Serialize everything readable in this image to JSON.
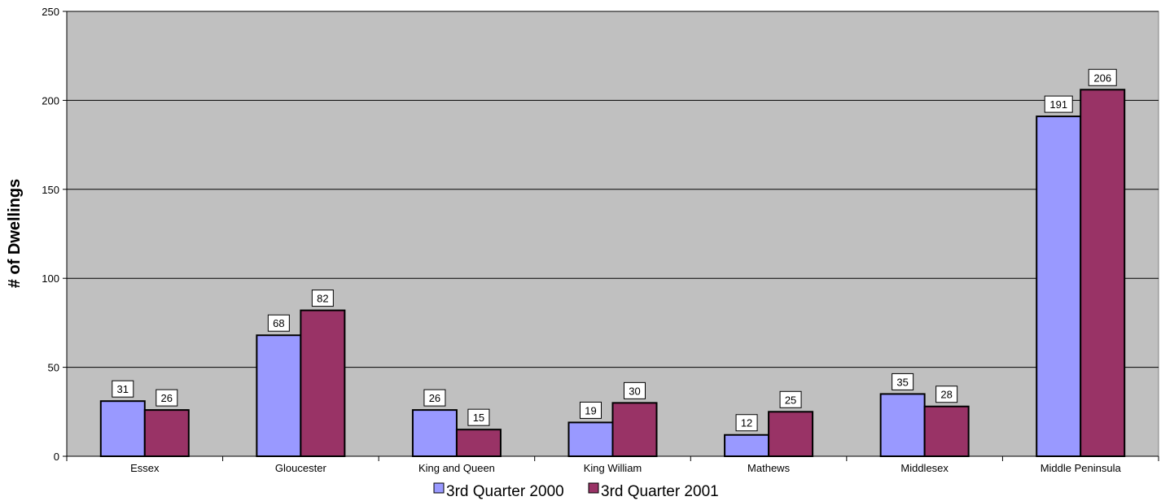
{
  "chart_data": {
    "type": "bar",
    "title": "",
    "xlabel": "",
    "ylabel": "# of Dwellings",
    "ylim": [
      0,
      250
    ],
    "yticks": [
      0,
      50,
      100,
      150,
      200,
      250
    ],
    "grid": true,
    "legend_position": "bottom",
    "categories": [
      "Essex",
      "Gloucester",
      "King and Queen",
      "King William",
      "Mathews",
      "Middlesex",
      "Middle Peninsula"
    ],
    "series": [
      {
        "name": "3rd Quarter 2000",
        "color": "#9999ff",
        "values": [
          31,
          68,
          26,
          19,
          12,
          35,
          191
        ]
      },
      {
        "name": "3rd Quarter 2001",
        "color": "#993366",
        "values": [
          26,
          82,
          15,
          30,
          25,
          28,
          206
        ]
      }
    ]
  },
  "colors": {
    "plot_background": "#c0c0c0",
    "gridline": "#000000",
    "bar_outline": "#000000"
  }
}
